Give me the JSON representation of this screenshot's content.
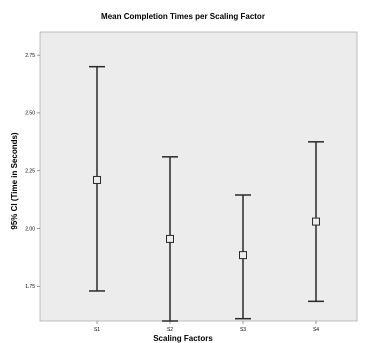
{
  "chart_data": {
    "type": "errorbar",
    "title": "Mean Completion Times per Scaling Factor",
    "xlabel": "Scaling Factors",
    "ylabel": "95% CI (Time in Seconds)",
    "categories": [
      "S1",
      "S2",
      "S3",
      "S4"
    ],
    "ylim": [
      1.6,
      2.85
    ],
    "yticks": [
      1.75,
      2.0,
      2.25,
      2.5,
      2.75
    ],
    "ytick_labels": [
      "1.75",
      "2.00",
      "2.25",
      "2.50",
      "2.75"
    ],
    "mean": [
      2.21,
      1.955,
      1.885,
      2.03
    ],
    "lower": [
      1.73,
      1.6,
      1.61,
      1.685
    ],
    "upper": [
      2.7,
      2.31,
      2.145,
      2.375
    ],
    "grid": false,
    "colors": {
      "plot_background": "#ececec",
      "line": "#2a2a2a"
    }
  }
}
